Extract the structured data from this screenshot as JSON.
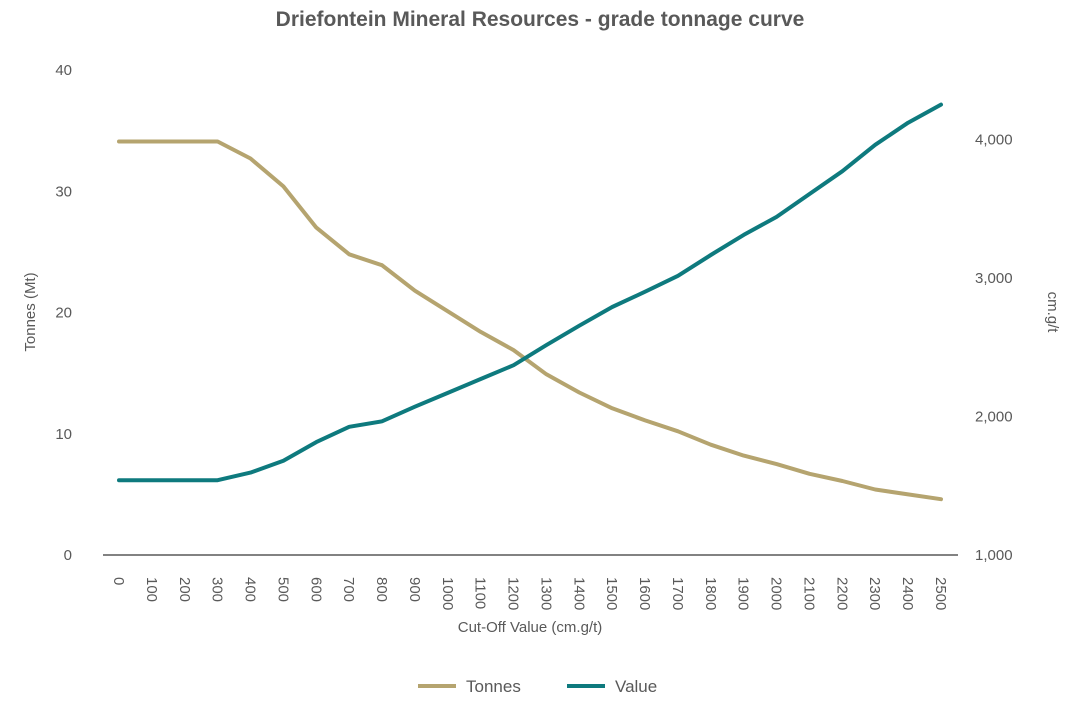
{
  "chart_data": {
    "type": "line",
    "title": "Driefontein Mineral Resources - grade tonnage curve",
    "xlabel": "Cut-Off Value (cm.g/t)",
    "ylabel_left": "Tonnes (Mt)",
    "ylabel_right": "cm.g/t",
    "categories": [
      "0",
      "100",
      "200",
      "300",
      "400",
      "500",
      "600",
      "700",
      "800",
      "900",
      "1000",
      "1100",
      "1200",
      "1300",
      "1400",
      "1500",
      "1600",
      "1700",
      "1800",
      "1900",
      "2000",
      "2100",
      "2200",
      "2300",
      "2400",
      "2500"
    ],
    "ylim_left": [
      0,
      40
    ],
    "yticks_left": [
      "0",
      "10",
      "20",
      "30",
      "40"
    ],
    "ylim_right": [
      1000,
      4500
    ],
    "yticks_right": [
      {
        "value": 1000,
        "label": "1,000"
      },
      {
        "value": 2000,
        "label": "2,000"
      },
      {
        "value": 3000,
        "label": "3,000"
      },
      {
        "value": 4000,
        "label": "4,000"
      }
    ],
    "legend_position": "bottom-center",
    "series": [
      {
        "name": "Tonnes",
        "axis": "left",
        "color": "#B5A46F",
        "values": [
          34.1,
          34.1,
          34.1,
          34.1,
          32.7,
          30.4,
          27.0,
          24.8,
          23.9,
          21.8,
          20.1,
          18.4,
          16.9,
          14.9,
          13.4,
          12.1,
          11.1,
          10.2,
          9.1,
          8.2,
          7.5,
          6.7,
          6.1,
          5.4,
          5.0,
          4.6
        ]
      },
      {
        "name": "Value",
        "axis": "right",
        "color": "#0E7A7E",
        "values": [
          1540,
          1540,
          1540,
          1540,
          1595,
          1680,
          1815,
          1925,
          1965,
          2070,
          2170,
          2270,
          2370,
          2515,
          2655,
          2790,
          2900,
          3015,
          3165,
          3310,
          3440,
          3605,
          3770,
          3960,
          4120,
          4250
        ]
      }
    ]
  }
}
